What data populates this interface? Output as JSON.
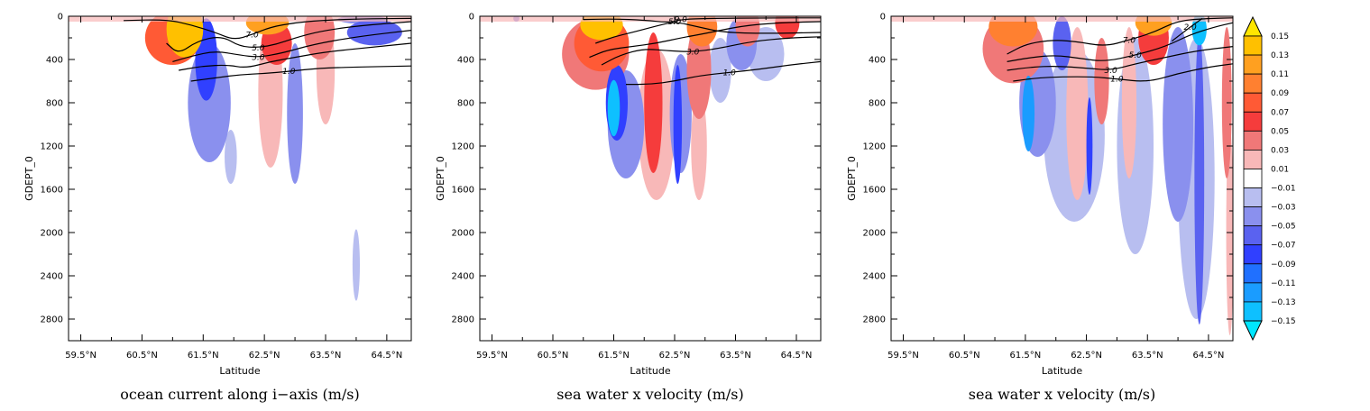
{
  "chart_data": [
    {
      "type": "contour",
      "title": "ocean current along i−axis (m/s)",
      "xlabel": "Latitude",
      "ylabel": "GDEPT_0",
      "x_ticks": [
        "59.5°N",
        "60.5°N",
        "61.5°N",
        "62.5°N",
        "63.5°N",
        "64.5°N"
      ],
      "y_ticks": [
        "0",
        "400",
        "800",
        "1200",
        "1600",
        "2000",
        "2400",
        "2800"
      ],
      "xlim": [
        59.3,
        64.9
      ],
      "ylim": [
        3000,
        0
      ],
      "isolines": [
        {
          "label": "7.0",
          "points": [
            [
              60.2,
              40
            ],
            [
              60.9,
              30
            ],
            [
              61.3,
              80
            ],
            [
              61.7,
              150
            ],
            [
              62.0,
              220
            ],
            [
              62.3,
              170
            ],
            [
              62.6,
              100
            ],
            [
              63.0,
              60
            ],
            [
              63.4,
              40
            ],
            [
              64.0,
              25
            ],
            [
              64.9,
              20
            ]
          ]
        },
        {
          "label": "5.0",
          "points": [
            [
              60.9,
              250
            ],
            [
              61.1,
              350
            ],
            [
              61.4,
              230
            ],
            [
              61.8,
              180
            ],
            [
              62.1,
              280
            ],
            [
              62.4,
              290
            ],
            [
              62.7,
              260
            ],
            [
              63.0,
              200
            ],
            [
              63.4,
              140
            ],
            [
              64.0,
              90
            ],
            [
              64.9,
              50
            ]
          ]
        },
        {
          "label": "3.0",
          "points": [
            [
              61.0,
              420
            ],
            [
              61.3,
              370
            ],
            [
              61.7,
              320
            ],
            [
              62.1,
              360
            ],
            [
              62.4,
              380
            ],
            [
              62.8,
              340
            ],
            [
              63.3,
              260
            ],
            [
              64.0,
              190
            ],
            [
              64.9,
              130
            ]
          ]
        },
        {
          "label": "1.0",
          "points": [
            [
              61.3,
              600
            ],
            [
              61.7,
              570
            ],
            [
              62.1,
              540
            ],
            [
              62.5,
              530
            ],
            [
              62.9,
              510
            ],
            [
              63.4,
              480
            ],
            [
              64.0,
              470
            ],
            [
              64.9,
              460
            ]
          ]
        },
        {
          "label": "",
          "points": [
            [
              61.1,
              500
            ],
            [
              61.5,
              460
            ],
            [
              61.9,
              450
            ],
            [
              62.2,
              480
            ],
            [
              62.6,
              420
            ],
            [
              63.0,
              380
            ],
            [
              63.5,
              330
            ],
            [
              64.2,
              290
            ],
            [
              64.9,
              250
            ]
          ]
        }
      ],
      "filled_regions": [
        {
          "value": 0.15,
          "cx": 61.2,
          "cy": 120,
          "rx": 0.3,
          "ry": 260,
          "tilt": 0
        },
        {
          "value": 0.09,
          "cx": 61.0,
          "cy": 200,
          "rx": 0.45,
          "ry": 250
        },
        {
          "value": 0.13,
          "cx": 62.55,
          "cy": 60,
          "rx": 0.35,
          "ry": 110
        },
        {
          "value": 0.07,
          "cx": 62.7,
          "cy": 250,
          "rx": 0.25,
          "ry": 200
        },
        {
          "value": 0.03,
          "cx": 62.6,
          "cy": 700,
          "rx": 0.2,
          "ry": 700
        },
        {
          "value": 0.05,
          "cx": 63.4,
          "cy": 150,
          "rx": 0.25,
          "ry": 250
        },
        {
          "value": 0.03,
          "cx": 63.5,
          "cy": 500,
          "rx": 0.15,
          "ry": 500
        },
        {
          "value": -0.07,
          "cx": 61.55,
          "cy": 400,
          "rx": 0.18,
          "ry": 380
        },
        {
          "value": -0.03,
          "cx": 61.6,
          "cy": 800,
          "rx": 0.35,
          "ry": 550
        },
        {
          "value": -0.01,
          "cx": 61.95,
          "cy": 1300,
          "rx": 0.1,
          "ry": 250
        },
        {
          "value": -0.03,
          "cx": 63.0,
          "cy": 900,
          "rx": 0.13,
          "ry": 650
        },
        {
          "value": -0.03,
          "cx": 64.1,
          "cy": 30,
          "rx": 0.4,
          "ry": 40
        },
        {
          "value": -0.05,
          "cx": 64.3,
          "cy": 150,
          "rx": 0.45,
          "ry": 120
        },
        {
          "value": -0.01,
          "cx": 64.0,
          "cy": 2300,
          "rx": 0.06,
          "ry": 330
        }
      ]
    },
    {
      "type": "contour",
      "title": "sea water x velocity (m/s)",
      "xlabel": "Latitude",
      "ylabel": "GDEPT_0",
      "x_ticks": [
        "59.5°N",
        "60.5°N",
        "61.5°N",
        "62.5°N",
        "63.5°N",
        "64.5°N"
      ],
      "y_ticks": [
        "0",
        "400",
        "800",
        "1200",
        "1600",
        "2000",
        "2400",
        "2800"
      ],
      "xlim": [
        59.3,
        64.9
      ],
      "ylim": [
        3000,
        0
      ],
      "isolines": [
        {
          "label": "9.0",
          "points": [
            [
              61.0,
              30
            ],
            [
              61.5,
              25
            ],
            [
              62.0,
              35
            ],
            [
              62.4,
              60
            ],
            [
              62.6,
              30
            ],
            [
              63.0,
              20
            ],
            [
              64.0,
              15
            ],
            [
              64.9,
              15
            ]
          ]
        },
        {
          "label": "5.0",
          "points": [
            [
              61.2,
              250
            ],
            [
              61.5,
              190
            ],
            [
              61.8,
              150
            ],
            [
              62.2,
              90
            ],
            [
              62.5,
              50
            ],
            [
              62.9,
              100
            ],
            [
              63.3,
              150
            ],
            [
              64.0,
              160
            ],
            [
              64.9,
              150
            ]
          ]
        },
        {
          "label": "3.0",
          "points": [
            [
              61.3,
              450
            ],
            [
              61.6,
              360
            ],
            [
              62.0,
              300
            ],
            [
              62.4,
              320
            ],
            [
              62.8,
              330
            ],
            [
              63.2,
              300
            ],
            [
              63.8,
              230
            ],
            [
              64.4,
              200
            ],
            [
              64.9,
              190
            ]
          ]
        },
        {
          "label": "1.0",
          "points": [
            [
              61.7,
              630
            ],
            [
              62.1,
              630
            ],
            [
              62.5,
              600
            ],
            [
              62.9,
              550
            ],
            [
              63.4,
              520
            ],
            [
              63.9,
              490
            ],
            [
              64.4,
              450
            ],
            [
              64.9,
              420
            ]
          ]
        },
        {
          "label": "",
          "points": [
            [
              61.1,
              380
            ],
            [
              61.4,
              310
            ],
            [
              61.8,
              280
            ],
            [
              62.2,
              250
            ],
            [
              62.6,
              200
            ],
            [
              63.0,
              160
            ],
            [
              63.6,
              90
            ],
            [
              64.2,
              60
            ],
            [
              64.9,
              50
            ]
          ]
        }
      ],
      "filled_regions": [
        {
          "value": 0.15,
          "cx": 61.3,
          "cy": 80,
          "rx": 0.35,
          "ry": 140
        },
        {
          "value": 0.09,
          "cx": 61.3,
          "cy": 250,
          "rx": 0.45,
          "ry": 260
        },
        {
          "value": 0.05,
          "cx": 61.2,
          "cy": 350,
          "rx": 0.55,
          "ry": 330
        },
        {
          "value": 0.07,
          "cx": 62.15,
          "cy": 800,
          "rx": 0.15,
          "ry": 650
        },
        {
          "value": 0.03,
          "cx": 62.2,
          "cy": 1000,
          "rx": 0.3,
          "ry": 700
        },
        {
          "value": 0.11,
          "cx": 62.95,
          "cy": 100,
          "rx": 0.25,
          "ry": 180
        },
        {
          "value": 0.05,
          "cx": 62.9,
          "cy": 500,
          "rx": 0.2,
          "ry": 450
        },
        {
          "value": 0.03,
          "cx": 62.9,
          "cy": 1200,
          "rx": 0.13,
          "ry": 500
        },
        {
          "value": 0.05,
          "cx": 63.7,
          "cy": 100,
          "rx": 0.2,
          "ry": 180
        },
        {
          "value": 0.07,
          "cx": 64.35,
          "cy": 60,
          "rx": 0.2,
          "ry": 150
        },
        {
          "value": -0.13,
          "cx": 61.5,
          "cy": 850,
          "rx": 0.1,
          "ry": 260
        },
        {
          "value": -0.07,
          "cx": 61.55,
          "cy": 800,
          "rx": 0.18,
          "ry": 350
        },
        {
          "value": -0.03,
          "cx": 61.7,
          "cy": 1000,
          "rx": 0.3,
          "ry": 500
        },
        {
          "value": -0.07,
          "cx": 62.55,
          "cy": 1000,
          "rx": 0.07,
          "ry": 550
        },
        {
          "value": -0.03,
          "cx": 62.6,
          "cy": 900,
          "rx": 0.18,
          "ry": 550
        },
        {
          "value": -0.01,
          "cx": 63.25,
          "cy": 500,
          "rx": 0.18,
          "ry": 300
        },
        {
          "value": -0.03,
          "cx": 63.6,
          "cy": 250,
          "rx": 0.25,
          "ry": 250
        },
        {
          "value": -0.01,
          "cx": 64.0,
          "cy": 350,
          "rx": 0.3,
          "ry": 250
        },
        {
          "value": -0.03,
          "cx": 59.9,
          "cy": 20,
          "rx": 0.05,
          "ry": 30
        }
      ]
    },
    {
      "type": "contour",
      "title": "sea water x velocity (m/s)",
      "xlabel": "Latitude",
      "ylabel": "GDEPT_0",
      "x_ticks": [
        "59.5°N",
        "60.5°N",
        "61.5°N",
        "62.5°N",
        "63.5°N",
        "64.5°N"
      ],
      "y_ticks": [
        "0",
        "400",
        "800",
        "1200",
        "1600",
        "2000",
        "2400",
        "2800"
      ],
      "xlim": [
        59.3,
        64.9
      ],
      "ylim": [
        3000,
        0
      ],
      "isolines": [
        {
          "label": "7.0",
          "points": [
            [
              61.2,
              350
            ],
            [
              61.5,
              260
            ],
            [
              61.9,
              220
            ],
            [
              62.3,
              230
            ],
            [
              62.8,
              280
            ],
            [
              63.2,
              220
            ],
            [
              63.6,
              150
            ],
            [
              64.0,
              40
            ],
            [
              64.5,
              20
            ],
            [
              64.9,
              15
            ]
          ]
        },
        {
          "label": "5.0",
          "points": [
            [
              61.2,
              420
            ],
            [
              61.6,
              380
            ],
            [
              62.0,
              360
            ],
            [
              62.4,
              390
            ],
            [
              62.8,
              420
            ],
            [
              63.3,
              360
            ],
            [
              63.8,
              280
            ],
            [
              64.2,
              170
            ],
            [
              64.6,
              100
            ],
            [
              64.9,
              60
            ]
          ]
        },
        {
          "label": "3.0",
          "points": [
            [
              61.2,
              500
            ],
            [
              61.6,
              470
            ],
            [
              62.0,
              460
            ],
            [
              62.5,
              480
            ],
            [
              62.9,
              500
            ],
            [
              63.3,
              440
            ],
            [
              63.8,
              380
            ],
            [
              64.3,
              320
            ],
            [
              64.9,
              280
            ]
          ]
        },
        {
          "label": "1.0",
          "points": [
            [
              61.3,
              600
            ],
            [
              61.7,
              570
            ],
            [
              62.1,
              560
            ],
            [
              62.6,
              560
            ],
            [
              63.0,
              580
            ],
            [
              63.5,
              610
            ],
            [
              64.0,
              530
            ],
            [
              64.5,
              470
            ],
            [
              64.9,
              440
            ]
          ]
        },
        {
          "label": "2.0",
          "points": [
            [
              63.9,
              230
            ],
            [
              64.2,
              100
            ],
            [
              64.4,
              20
            ]
          ]
        }
      ],
      "filled_regions": [
        {
          "value": 0.11,
          "cx": 61.3,
          "cy": 100,
          "rx": 0.4,
          "ry": 180
        },
        {
          "value": 0.05,
          "cx": 61.3,
          "cy": 300,
          "rx": 0.5,
          "ry": 320
        },
        {
          "value": 0.13,
          "cx": 63.6,
          "cy": 60,
          "rx": 0.3,
          "ry": 120
        },
        {
          "value": 0.07,
          "cx": 63.6,
          "cy": 200,
          "rx": 0.25,
          "ry": 250
        },
        {
          "value": 0.03,
          "cx": 62.35,
          "cy": 900,
          "rx": 0.18,
          "ry": 800
        },
        {
          "value": 0.05,
          "cx": 62.75,
          "cy": 600,
          "rx": 0.12,
          "ry": 400
        },
        {
          "value": 0.03,
          "cx": 63.2,
          "cy": 800,
          "rx": 0.12,
          "ry": 700
        },
        {
          "value": 0.05,
          "cx": 64.8,
          "cy": 800,
          "rx": 0.08,
          "ry": 700
        },
        {
          "value": 0.03,
          "cx": 64.85,
          "cy": 2000,
          "rx": 0.06,
          "ry": 950
        },
        {
          "value": -0.11,
          "cx": 61.55,
          "cy": 900,
          "rx": 0.1,
          "ry": 350
        },
        {
          "value": -0.03,
          "cx": 61.7,
          "cy": 800,
          "rx": 0.3,
          "ry": 500
        },
        {
          "value": -0.05,
          "cx": 62.1,
          "cy": 250,
          "rx": 0.15,
          "ry": 250
        },
        {
          "value": -0.07,
          "cx": 62.55,
          "cy": 1200,
          "rx": 0.05,
          "ry": 450
        },
        {
          "value": -0.01,
          "cx": 62.3,
          "cy": 1100,
          "rx": 0.5,
          "ry": 800
        },
        {
          "value": -0.01,
          "cx": 63.3,
          "cy": 1200,
          "rx": 0.3,
          "ry": 1000
        },
        {
          "value": -0.03,
          "cx": 64.0,
          "cy": 1000,
          "rx": 0.25,
          "ry": 900
        },
        {
          "value": -0.13,
          "cx": 64.35,
          "cy": 120,
          "rx": 0.12,
          "ry": 150
        },
        {
          "value": -0.05,
          "cx": 64.35,
          "cy": 1500,
          "rx": 0.08,
          "ry": 1350
        },
        {
          "value": -0.01,
          "cx": 64.3,
          "cy": 1500,
          "rx": 0.3,
          "ry": 1300
        }
      ]
    }
  ],
  "colorbar": {
    "labels": [
      "0.15",
      "0.13",
      "0.11",
      "0.09",
      "0.07",
      "0.05",
      "0.03",
      "0.01",
      "−0.01",
      "−0.03",
      "−0.05",
      "−0.07",
      "−0.09",
      "−0.11",
      "−0.13",
      "−0.15"
    ],
    "colors": [
      "#ffe600",
      "#ffc000",
      "#ffa020",
      "#ff8030",
      "#ff5a35",
      "#f53c3c",
      "#f07878",
      "#f8b8b8",
      "#ffffff",
      "#b8bef0",
      "#8a90ee",
      "#5a62f0",
      "#3040ff",
      "#2070ff",
      "#1a9cff",
      "#0ec0ff",
      "#00e6ff"
    ]
  }
}
